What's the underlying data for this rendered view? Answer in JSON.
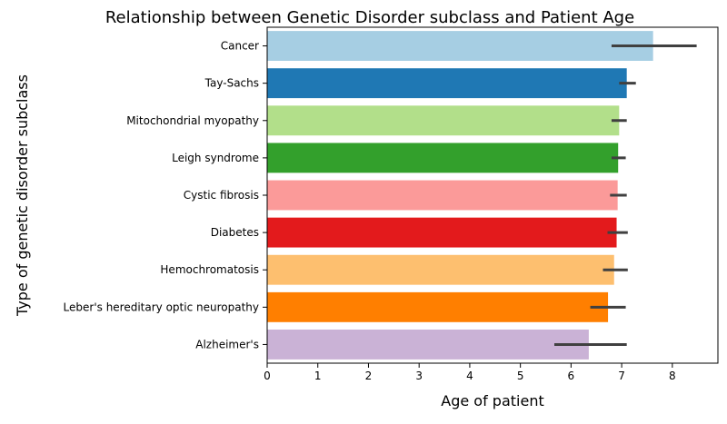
{
  "chart_data": {
    "type": "bar",
    "orientation": "horizontal",
    "title": "Relationship between Genetic Disorder subclass and Patient Age",
    "xlabel": "Age of patient",
    "ylabel": "Type of genetic disorder subclass",
    "xlim": [
      0,
      8.9
    ],
    "xticks": [
      "0",
      "1",
      "2",
      "3",
      "4",
      "5",
      "6",
      "7",
      "8"
    ],
    "grid": false,
    "categories": [
      "Cancer",
      "Tay-Sachs",
      "Mitochondrial myopathy",
      "Leigh syndrome",
      "Cystic fibrosis",
      "Diabetes",
      "Hemochromatosis",
      "Leber's hereditary optic neuropathy",
      "Alzheimer's"
    ],
    "values": [
      7.62,
      7.1,
      6.95,
      6.93,
      6.92,
      6.9,
      6.85,
      6.73,
      6.35
    ],
    "error_low": [
      6.8,
      6.95,
      6.8,
      6.8,
      6.77,
      6.72,
      6.63,
      6.38,
      5.67
    ],
    "error_high": [
      8.48,
      7.28,
      7.1,
      7.08,
      7.1,
      7.12,
      7.12,
      7.08,
      7.1
    ],
    "colors": [
      "#a6cee3",
      "#1f78b4",
      "#b2df8a",
      "#33a02c",
      "#fb9a99",
      "#e31a1c",
      "#fdbf6f",
      "#ff7f00",
      "#cab2d6"
    ],
    "error_color": "#404040"
  }
}
